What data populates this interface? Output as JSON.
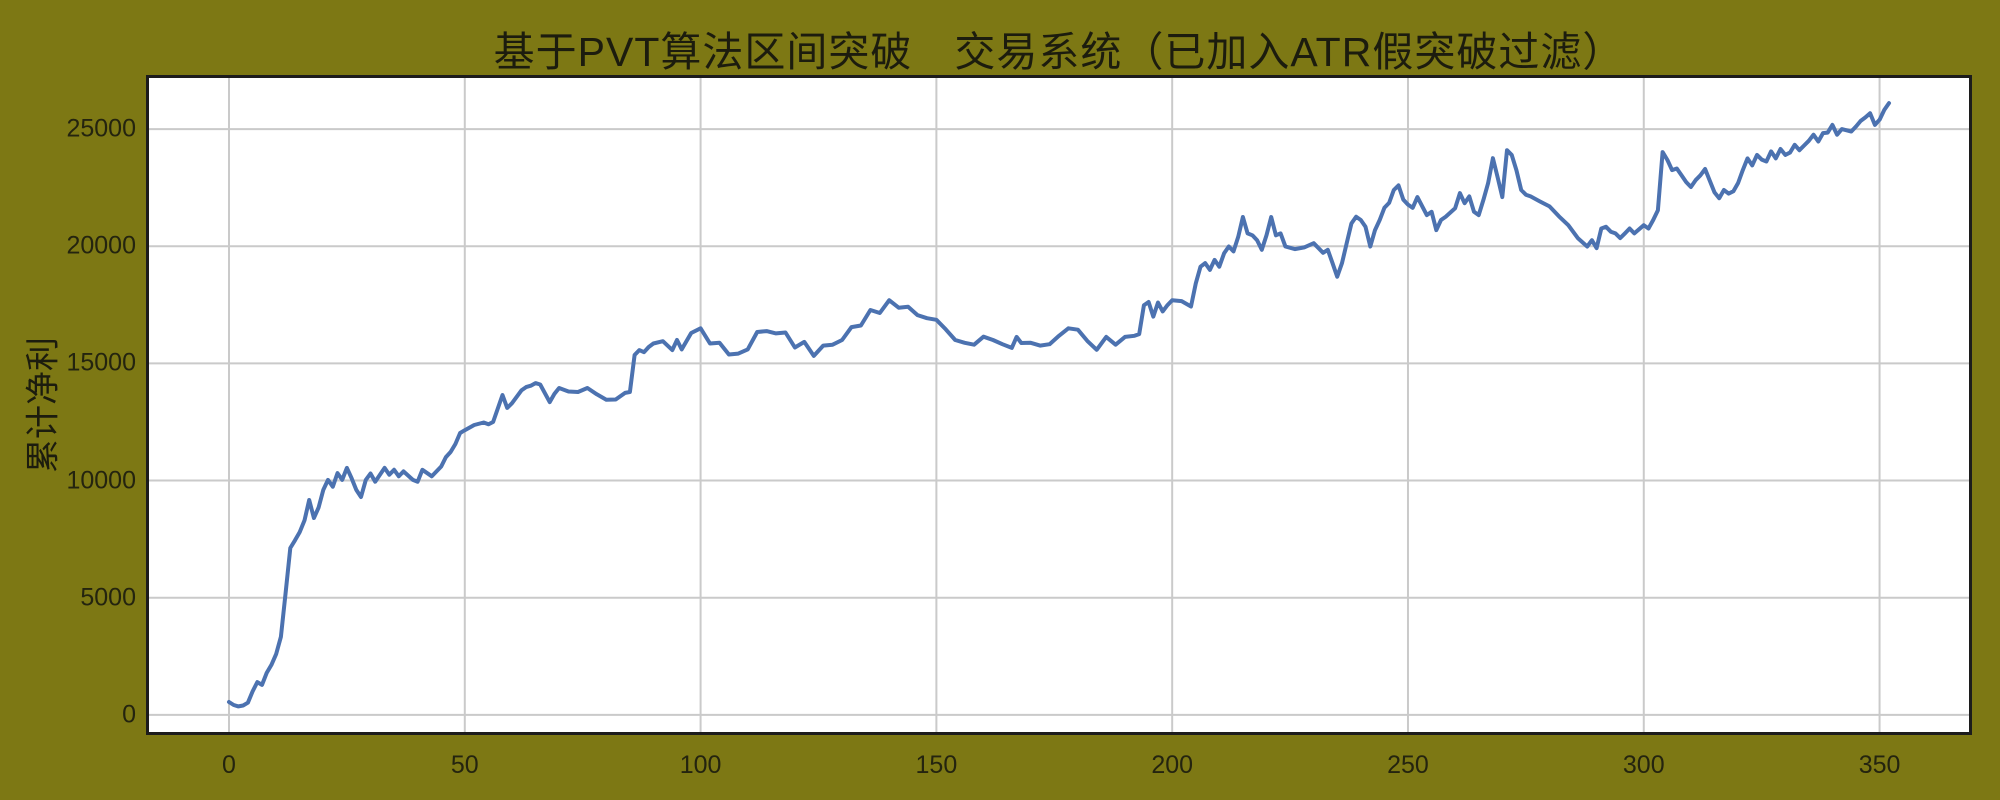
{
  "figure": {
    "background_color": "#7d7814",
    "text_color": "#1c1c0e",
    "plot_background_color": "#ffffff",
    "gridline_color": "#cacaca",
    "spine_color": "#1c1c1c"
  },
  "chart_data": {
    "type": "line",
    "title": "基于PVT算法区间突破　交易系统（已加入ATR假突破过滤）",
    "xlabel": "",
    "ylabel": "累计净利",
    "grid": true,
    "legend": false,
    "xlim": [
      -17.6,
      369.6
    ],
    "ylim": [
      -860,
      27310
    ],
    "x_ticks": [
      0,
      50,
      100,
      150,
      200,
      250,
      300,
      350
    ],
    "y_ticks": [
      0,
      5000,
      10000,
      15000,
      20000,
      25000
    ],
    "series": [
      {
        "name": "累计净利",
        "color": "#4C72B0",
        "points": [
          [
            0,
            550
          ],
          [
            1,
            420
          ],
          [
            2,
            360
          ],
          [
            3,
            400
          ],
          [
            4,
            520
          ],
          [
            5,
            1000
          ],
          [
            6,
            1400
          ],
          [
            7,
            1280
          ],
          [
            8,
            1790
          ],
          [
            9,
            2130
          ],
          [
            10,
            2600
          ],
          [
            11,
            3330
          ],
          [
            12,
            5200
          ],
          [
            13,
            7120
          ],
          [
            14,
            7450
          ],
          [
            15,
            7800
          ],
          [
            16,
            8300
          ],
          [
            17,
            9170
          ],
          [
            18,
            8400
          ],
          [
            19,
            8850
          ],
          [
            20,
            9600
          ],
          [
            21,
            10030
          ],
          [
            22,
            9740
          ],
          [
            23,
            10320
          ],
          [
            24,
            10030
          ],
          [
            25,
            10540
          ],
          [
            26,
            10100
          ],
          [
            27,
            9600
          ],
          [
            28,
            9300
          ],
          [
            29,
            10030
          ],
          [
            30,
            10300
          ],
          [
            31,
            9950
          ],
          [
            33,
            10540
          ],
          [
            34,
            10250
          ],
          [
            35,
            10460
          ],
          [
            36,
            10180
          ],
          [
            37,
            10390
          ],
          [
            39,
            10030
          ],
          [
            40,
            9950
          ],
          [
            41,
            10460
          ],
          [
            43,
            10180
          ],
          [
            45,
            10600
          ],
          [
            46,
            11000
          ],
          [
            47,
            11220
          ],
          [
            48,
            11560
          ],
          [
            49,
            12030
          ],
          [
            50,
            12150
          ],
          [
            52,
            12370
          ],
          [
            54,
            12480
          ],
          [
            55,
            12400
          ],
          [
            56,
            12500
          ],
          [
            58,
            13650
          ],
          [
            59,
            13100
          ],
          [
            60,
            13300
          ],
          [
            62,
            13850
          ],
          [
            63,
            13990
          ],
          [
            64,
            14050
          ],
          [
            65,
            14160
          ],
          [
            66,
            14100
          ],
          [
            68,
            13350
          ],
          [
            69,
            13700
          ],
          [
            70,
            13950
          ],
          [
            72,
            13800
          ],
          [
            74,
            13780
          ],
          [
            76,
            13950
          ],
          [
            78,
            13680
          ],
          [
            80,
            13450
          ],
          [
            82,
            13460
          ],
          [
            84,
            13740
          ],
          [
            85,
            13780
          ],
          [
            86,
            15360
          ],
          [
            87,
            15570
          ],
          [
            88,
            15480
          ],
          [
            89,
            15700
          ],
          [
            90,
            15850
          ],
          [
            92,
            15950
          ],
          [
            94,
            15570
          ],
          [
            95,
            16000
          ],
          [
            96,
            15600
          ],
          [
            98,
            16300
          ],
          [
            100,
            16500
          ],
          [
            102,
            15850
          ],
          [
            104,
            15880
          ],
          [
            106,
            15380
          ],
          [
            108,
            15420
          ],
          [
            110,
            15600
          ],
          [
            112,
            16340
          ],
          [
            114,
            16380
          ],
          [
            116,
            16280
          ],
          [
            118,
            16320
          ],
          [
            120,
            15680
          ],
          [
            122,
            15920
          ],
          [
            124,
            15320
          ],
          [
            126,
            15760
          ],
          [
            128,
            15800
          ],
          [
            130,
            16000
          ],
          [
            132,
            16550
          ],
          [
            134,
            16620
          ],
          [
            136,
            17280
          ],
          [
            138,
            17150
          ],
          [
            140,
            17700
          ],
          [
            142,
            17380
          ],
          [
            144,
            17420
          ],
          [
            146,
            17060
          ],
          [
            148,
            16930
          ],
          [
            150,
            16860
          ],
          [
            152,
            16450
          ],
          [
            154,
            16000
          ],
          [
            156,
            15880
          ],
          [
            158,
            15800
          ],
          [
            160,
            16140
          ],
          [
            162,
            16000
          ],
          [
            164,
            15820
          ],
          [
            166,
            15660
          ],
          [
            167,
            16130
          ],
          [
            168,
            15870
          ],
          [
            170,
            15880
          ],
          [
            172,
            15760
          ],
          [
            174,
            15820
          ],
          [
            176,
            16180
          ],
          [
            178,
            16500
          ],
          [
            180,
            16440
          ],
          [
            182,
            15960
          ],
          [
            184,
            15580
          ],
          [
            186,
            16130
          ],
          [
            188,
            15800
          ],
          [
            190,
            16130
          ],
          [
            192,
            16180
          ],
          [
            193,
            16250
          ],
          [
            194,
            17480
          ],
          [
            195,
            17620
          ],
          [
            196,
            17000
          ],
          [
            197,
            17600
          ],
          [
            198,
            17220
          ],
          [
            199,
            17490
          ],
          [
            200,
            17700
          ],
          [
            202,
            17660
          ],
          [
            204,
            17430
          ],
          [
            205,
            18420
          ],
          [
            206,
            19130
          ],
          [
            207,
            19280
          ],
          [
            208,
            18990
          ],
          [
            209,
            19420
          ],
          [
            210,
            19130
          ],
          [
            211,
            19700
          ],
          [
            212,
            19990
          ],
          [
            213,
            19780
          ],
          [
            214,
            20400
          ],
          [
            215,
            21250
          ],
          [
            216,
            20550
          ],
          [
            217,
            20470
          ],
          [
            218,
            20260
          ],
          [
            219,
            19850
          ],
          [
            220,
            20470
          ],
          [
            221,
            21250
          ],
          [
            222,
            20470
          ],
          [
            223,
            20550
          ],
          [
            224,
            19990
          ],
          [
            226,
            19880
          ],
          [
            228,
            19950
          ],
          [
            230,
            20130
          ],
          [
            232,
            19720
          ],
          [
            233,
            19850
          ],
          [
            234,
            19280
          ],
          [
            235,
            18700
          ],
          [
            236,
            19280
          ],
          [
            237,
            20130
          ],
          [
            238,
            20970
          ],
          [
            239,
            21260
          ],
          [
            240,
            21120
          ],
          [
            241,
            20830
          ],
          [
            242,
            19990
          ],
          [
            243,
            20690
          ],
          [
            244,
            21120
          ],
          [
            245,
            21640
          ],
          [
            246,
            21850
          ],
          [
            247,
            22400
          ],
          [
            248,
            22600
          ],
          [
            249,
            21990
          ],
          [
            250,
            21780
          ],
          [
            251,
            21640
          ],
          [
            252,
            22100
          ],
          [
            254,
            21330
          ],
          [
            255,
            21470
          ],
          [
            256,
            20690
          ],
          [
            257,
            21120
          ],
          [
            258,
            21260
          ],
          [
            260,
            21620
          ],
          [
            261,
            22270
          ],
          [
            262,
            21840
          ],
          [
            263,
            22130
          ],
          [
            264,
            21470
          ],
          [
            265,
            21330
          ],
          [
            266,
            21980
          ],
          [
            267,
            22690
          ],
          [
            268,
            23760
          ],
          [
            269,
            22950
          ],
          [
            270,
            22100
          ],
          [
            271,
            24100
          ],
          [
            272,
            23900
          ],
          [
            273,
            23250
          ],
          [
            274,
            22400
          ],
          [
            275,
            22200
          ],
          [
            276,
            22130
          ],
          [
            278,
            21910
          ],
          [
            280,
            21700
          ],
          [
            282,
            21280
          ],
          [
            284,
            20900
          ],
          [
            286,
            20350
          ],
          [
            288,
            19990
          ],
          [
            289,
            20260
          ],
          [
            290,
            19920
          ],
          [
            291,
            20760
          ],
          [
            292,
            20830
          ],
          [
            293,
            20620
          ],
          [
            294,
            20550
          ],
          [
            295,
            20350
          ],
          [
            296,
            20550
          ],
          [
            297,
            20760
          ],
          [
            298,
            20550
          ],
          [
            300,
            20900
          ],
          [
            301,
            20760
          ],
          [
            302,
            21120
          ],
          [
            303,
            21540
          ],
          [
            304,
            24020
          ],
          [
            305,
            23680
          ],
          [
            306,
            23250
          ],
          [
            307,
            23320
          ],
          [
            308,
            23030
          ],
          [
            309,
            22740
          ],
          [
            310,
            22530
          ],
          [
            311,
            22820
          ],
          [
            312,
            23030
          ],
          [
            313,
            23300
          ],
          [
            314,
            22800
          ],
          [
            315,
            22300
          ],
          [
            316,
            22050
          ],
          [
            317,
            22400
          ],
          [
            318,
            22250
          ],
          [
            319,
            22350
          ],
          [
            320,
            22700
          ],
          [
            321,
            23250
          ],
          [
            322,
            23750
          ],
          [
            323,
            23450
          ],
          [
            324,
            23900
          ],
          [
            325,
            23700
          ],
          [
            326,
            23620
          ],
          [
            327,
            24050
          ],
          [
            328,
            23750
          ],
          [
            329,
            24150
          ],
          [
            330,
            23900
          ],
          [
            331,
            24000
          ],
          [
            332,
            24330
          ],
          [
            333,
            24100
          ],
          [
            334,
            24300
          ],
          [
            335,
            24500
          ],
          [
            336,
            24760
          ],
          [
            337,
            24470
          ],
          [
            338,
            24830
          ],
          [
            339,
            24850
          ],
          [
            340,
            25180
          ],
          [
            341,
            24760
          ],
          [
            342,
            25000
          ],
          [
            343,
            24950
          ],
          [
            344,
            24900
          ],
          [
            345,
            25110
          ],
          [
            346,
            25350
          ],
          [
            347,
            25500
          ],
          [
            348,
            25680
          ],
          [
            349,
            25180
          ],
          [
            350,
            25400
          ],
          [
            351,
            25820
          ],
          [
            352,
            26110
          ]
        ]
      }
    ]
  }
}
